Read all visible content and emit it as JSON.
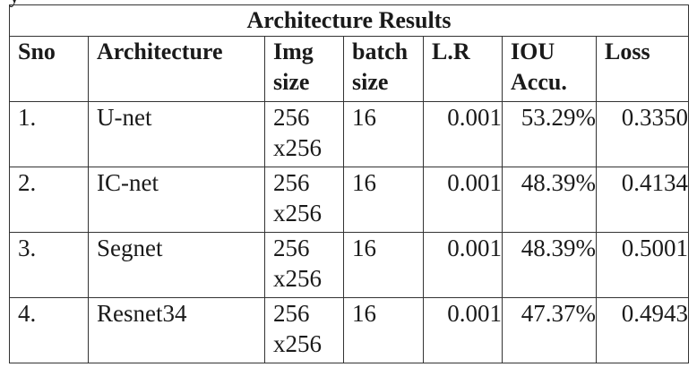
{
  "top_fragment": "y",
  "table": {
    "title": "Architecture Results",
    "columns": [
      [
        "Sno"
      ],
      [
        "Architecture"
      ],
      [
        "Img",
        "size"
      ],
      [
        "batch",
        "size"
      ],
      [
        "L.R"
      ],
      [
        "IOU",
        "Accu."
      ],
      [
        "Loss"
      ]
    ],
    "rows": [
      {
        "sno": "1.",
        "architecture": "U-net",
        "img_size": [
          "256",
          "x256"
        ],
        "batch_size": "16",
        "lr": "0.001",
        "iou": "53.29%",
        "loss": "0.3350"
      },
      {
        "sno": "2.",
        "architecture": "IC-net",
        "img_size": [
          "256",
          "x256"
        ],
        "batch_size": "16",
        "lr": "0.001",
        "iou": "48.39%",
        "loss": "0.4134"
      },
      {
        "sno": "3.",
        "architecture": "Segnet",
        "img_size": [
          "256",
          "x256"
        ],
        "batch_size": "16",
        "lr": "0.001",
        "iou": "48.39%",
        "loss": "0.5001"
      },
      {
        "sno": "4.",
        "architecture": "Resnet34",
        "img_size": [
          "256",
          "x256"
        ],
        "batch_size": "16",
        "lr": "0.001",
        "iou": "47.37%",
        "loss": "0.4943"
      }
    ]
  }
}
